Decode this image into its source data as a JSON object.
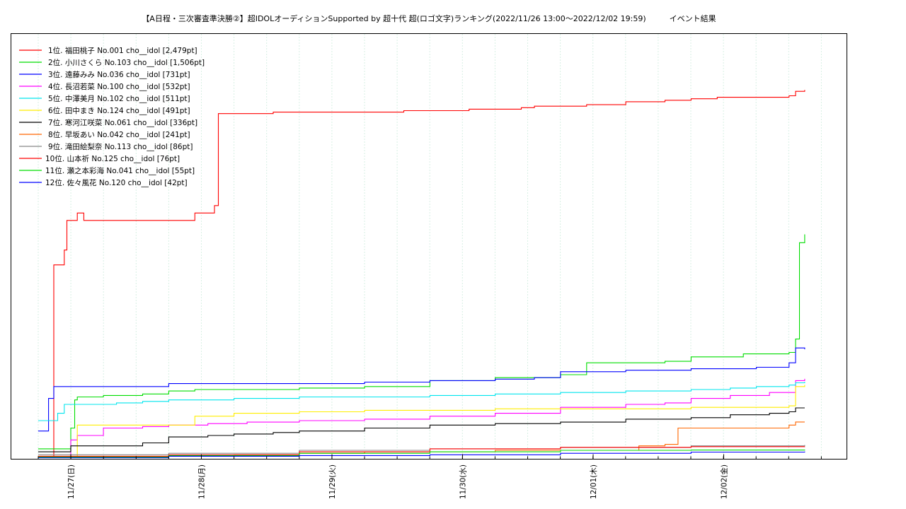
{
  "chart_data": {
    "type": "line",
    "title": "【A日程・三次審査準決勝②】超IDOLオーディションSupported by 超十代 超(ロゴ文字)ランキング(2022/11/26 13:00〜2022/12/02 19:59)　　　イベント結果",
    "xlabel": "",
    "ylabel": "",
    "x_ticks": [
      "11/27(日)",
      "11/28(月)",
      "11/29(火)",
      "11/30(水)",
      "12/01(木)",
      "12/02(金)"
    ],
    "ylim": [
      0,
      2850
    ],
    "grid": "vertical-dotted",
    "legend_position": "top-left",
    "series": [
      {
        "name": "1位. 福田桃子 No.001 cho__idol [2,479pt]",
        "color": "#ff0000",
        "x": [
          0,
          0.1,
          0.12,
          0.2,
          0.22,
          0.3,
          0.35,
          1.0,
          1.2,
          1.35,
          1.38,
          1.8,
          2.0,
          2.2,
          2.6,
          2.8,
          3.0,
          3.3,
          3.5,
          3.7,
          3.8,
          4.0,
          4.2,
          4.5,
          4.8,
          5.0,
          5.2,
          5.5,
          5.75,
          5.8,
          5.87
        ],
        "y": [
          0,
          0,
          1300,
          1400,
          1600,
          1650,
          1600,
          1600,
          1650,
          1700,
          2320,
          2330,
          2330,
          2330,
          2330,
          2340,
          2340,
          2350,
          2350,
          2360,
          2370,
          2370,
          2380,
          2400,
          2410,
          2420,
          2430,
          2430,
          2440,
          2470,
          2479
        ]
      },
      {
        "name": "2位. 小川さくら No.103 cho__idol [1,506pt]",
        "color": "#00dd00",
        "x": [
          0,
          0.2,
          0.25,
          0.28,
          0.3,
          0.5,
          0.8,
          1.0,
          1.2,
          1.5,
          2.0,
          2.5,
          3.0,
          3.5,
          4.0,
          4.2,
          4.5,
          4.8,
          5.0,
          5.2,
          5.4,
          5.6,
          5.75,
          5.8,
          5.83,
          5.87
        ],
        "y": [
          60,
          60,
          200,
          390,
          410,
          420,
          430,
          450,
          460,
          460,
          470,
          480,
          520,
          540,
          560,
          640,
          640,
          650,
          680,
          680,
          700,
          700,
          710,
          800,
          1450,
          1506
        ]
      },
      {
        "name": "3位. 遠藤みみ No.036 cho__idol [731pt]",
        "color": "#0000ff",
        "x": [
          0,
          0.05,
          0.08,
          0.12,
          0.2,
          0.5,
          1.0,
          1.5,
          2.0,
          2.5,
          3.0,
          3.5,
          3.8,
          4.0,
          4.5,
          5.0,
          5.5,
          5.7,
          5.75,
          5.8,
          5.87
        ],
        "y": [
          180,
          180,
          400,
          480,
          480,
          480,
          500,
          500,
          500,
          510,
          520,
          530,
          540,
          580,
          590,
          600,
          610,
          610,
          640,
          740,
          731
        ]
      },
      {
        "name": "4位. 長沼若菜 No.100 cho__idol [532pt]",
        "color": "#ff00ff",
        "x": [
          0,
          0.2,
          0.25,
          0.3,
          0.5,
          0.8,
          1.0,
          1.3,
          1.6,
          2.0,
          2.5,
          3.0,
          3.5,
          4.0,
          4.5,
          4.8,
          5.0,
          5.3,
          5.6,
          5.75,
          5.8,
          5.87
        ],
        "y": [
          0,
          0,
          120,
          150,
          200,
          210,
          220,
          230,
          240,
          250,
          260,
          280,
          300,
          340,
          360,
          370,
          400,
          420,
          440,
          440,
          520,
          532
        ]
      },
      {
        "name": "5位. 中澤美月 No.102 cho__idol [511pt]",
        "color": "#00e5ee",
        "x": [
          0,
          0.05,
          0.1,
          0.15,
          0.2,
          0.4,
          0.6,
          0.8,
          1.0,
          1.3,
          1.5,
          2.0,
          2.5,
          3.0,
          3.5,
          4.0,
          4.5,
          5.0,
          5.3,
          5.5,
          5.75,
          5.8,
          5.87
        ],
        "y": [
          250,
          250,
          250,
          300,
          360,
          360,
          370,
          380,
          390,
          390,
          400,
          410,
          410,
          420,
          430,
          440,
          450,
          460,
          470,
          480,
          490,
          505,
          511
        ]
      },
      {
        "name": "6位. 田中まき No.124 cho__idol [491pt]",
        "color": "#ffee00",
        "x": [
          0,
          0.2,
          0.3,
          0.5,
          1.0,
          1.2,
          1.5,
          2.0,
          2.5,
          3.0,
          3.5,
          4.0,
          4.5,
          5.0,
          5.5,
          5.75,
          5.8,
          5.87
        ],
        "y": [
          0,
          0,
          220,
          220,
          220,
          280,
          300,
          310,
          320,
          320,
          330,
          330,
          330,
          340,
          340,
          350,
          480,
          491
        ]
      },
      {
        "name": "7位. 寒河江咲菜 No.061 cho__idol [336pt]",
        "color": "#000000",
        "x": [
          0,
          0.2,
          0.25,
          0.5,
          0.8,
          1.0,
          1.3,
          1.5,
          1.8,
          2.0,
          2.5,
          3.0,
          3.5,
          4.0,
          4.5,
          5.0,
          5.3,
          5.6,
          5.75,
          5.8,
          5.87
        ],
        "y": [
          40,
          40,
          80,
          80,
          100,
          140,
          150,
          160,
          170,
          180,
          200,
          220,
          230,
          240,
          260,
          270,
          290,
          300,
          310,
          336,
          336
        ]
      },
      {
        "name": "8位. 早坂あい No.042 cho__idol [241pt]",
        "color": "#ff6600",
        "x": [
          0,
          0.5,
          1.0,
          1.5,
          2.0,
          2.5,
          3.0,
          3.5,
          4.0,
          4.5,
          4.6,
          4.8,
          4.9,
          5.0,
          5.5,
          5.75,
          5.8,
          5.87
        ],
        "y": [
          0,
          0,
          10,
          20,
          30,
          40,
          40,
          50,
          50,
          50,
          80,
          90,
          200,
          200,
          200,
          220,
          241,
          241
        ]
      },
      {
        "name": "9位. 滝田絵梨奈 No.113 cho__idol [86pt]",
        "color": "#888888",
        "x": [
          0,
          1.0,
          2.0,
          3.0,
          4.0,
          5.0,
          5.87
        ],
        "y": [
          20,
          30,
          50,
          60,
          70,
          80,
          86
        ]
      },
      {
        "name": "10位. 山本祈 No.125 cho__idol [76pt]",
        "color": "#ff0000",
        "x": [
          0,
          1.0,
          2.0,
          3.0,
          4.0,
          5.0,
          5.87
        ],
        "y": [
          10,
          20,
          40,
          60,
          70,
          75,
          76
        ]
      },
      {
        "name": "11位. 瀬之本彩海 No.041 cho__idol [55pt]",
        "color": "#00dd00",
        "x": [
          0,
          1.0,
          2.0,
          3.0,
          4.0,
          5.0,
          5.87
        ],
        "y": [
          5,
          15,
          30,
          40,
          50,
          52,
          55
        ]
      },
      {
        "name": "12位. 佐々風花 No.120 cho__idol [42pt]",
        "color": "#0000ff",
        "x": [
          0,
          1.0,
          2.0,
          3.0,
          4.0,
          5.0,
          5.87
        ],
        "y": [
          0,
          10,
          15,
          20,
          30,
          38,
          42
        ]
      }
    ]
  }
}
